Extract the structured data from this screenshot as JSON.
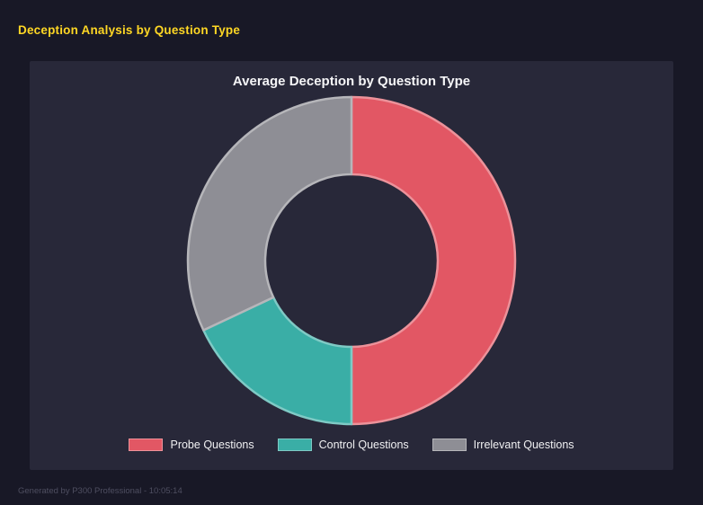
{
  "page": {
    "title": "Deception Analysis by Question Type",
    "footer": "Generated by P300 Professional - 10:05:14"
  },
  "colors": {
    "page_background": "#181826",
    "panel_background": "#282839",
    "page_title_yellow": "#ffd724",
    "chart_title_white": "#f5f5f7",
    "footer_gray": "#4e4e60"
  },
  "chart_data": {
    "type": "pie",
    "subtype": "donut",
    "title": "Average Deception by Question Type",
    "labels": [
      "Probe Questions",
      "Control Questions",
      "Irrelevant Questions"
    ],
    "values": [
      50,
      18,
      32
    ],
    "unit": "percent-of-circle",
    "colors": [
      "#e25764",
      "#3aaea6",
      "#8e8e95"
    ],
    "start_angle_deg": 0,
    "direction": "clockwise",
    "inner_radius_ratio": 0.525,
    "legend_position": "bottom",
    "grid": false
  }
}
